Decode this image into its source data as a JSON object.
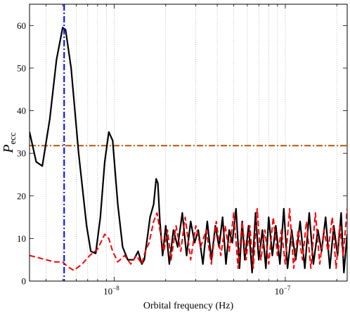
{
  "chart_data": {
    "type": "line",
    "xlabel": "Orbital frequency (Hz)",
    "ylabel": "P",
    "ylabel_subscript": "ecc",
    "xscale": "log",
    "xlim": [
      3.2e-09,
      2.3e-07
    ],
    "ylim": [
      0,
      65
    ],
    "x_ticks": [
      1e-08,
      1e-07
    ],
    "x_tick_labels": [
      {
        "base": "10",
        "exp": "−8"
      },
      {
        "base": "10",
        "exp": "−7"
      }
    ],
    "y_ticks": [
      0,
      10,
      20,
      30,
      40,
      50,
      60
    ],
    "y_tick_labels": [
      "0",
      "10",
      "20",
      "30",
      "40",
      "50",
      "60"
    ],
    "grid": "dotted vertical at log minor ticks",
    "threshold_level": 31.8,
    "marker_frequency": 5.1e-09,
    "colors": {
      "black_curve": "#000000",
      "red_curve": "#ff0000",
      "threshold": "#b35806",
      "marker": "#0000ff"
    },
    "series": [
      {
        "style": "solid black",
        "x": [
          3.2e-09,
          3.5e-09,
          3.8e-09,
          4.2e-09,
          4.6e-09,
          5e-09,
          5.2e-09,
          5.6e-09,
          6.2e-09,
          6.9e-09,
          7.3e-09,
          7.8e-09,
          8.3e-09,
          8.8e-09,
          9.3e-09,
          9.8e-09,
          1.05e-08,
          1.12e-08,
          1.2e-08,
          1.3e-08,
          1.38e-08,
          1.45e-08,
          1.5e-08,
          1.56e-08,
          1.62e-08,
          1.7e-08,
          1.76e-08,
          1.8e-08,
          1.85e-08,
          1.92e-08,
          2e-08,
          2.1e-08,
          2.22e-08,
          2.35e-08,
          2.5e-08,
          2.65e-08,
          2.8e-08,
          2.95e-08,
          3.1e-08,
          3.3e-08,
          3.5e-08,
          3.7e-08,
          3.9e-08,
          4.1e-08,
          4.3e-08,
          4.5e-08,
          4.7e-08,
          4.9e-08,
          5.15e-08,
          5.4e-08,
          5.6e-08,
          5.8e-08,
          6.1e-08,
          6.4e-08,
          6.7e-08,
          7e-08,
          7.35e-08,
          7.7e-08,
          8e-08,
          8.4e-08,
          8.8e-08,
          9.3e-08,
          9.8e-08,
          1.03e-07,
          1.09e-07,
          1.15e-07,
          1.22e-07,
          1.3e-07,
          1.38e-07,
          1.46e-07,
          1.55e-07,
          1.63e-07,
          1.72e-07,
          1.82e-07,
          1.92e-07,
          2.02e-07,
          2.12e-07,
          2.2e-07,
          2.3e-07
        ],
        "y": [
          35,
          28,
          27,
          38,
          52,
          59.5,
          59,
          50,
          30,
          13,
          7,
          6.5,
          15,
          28,
          35,
          33,
          18,
          8,
          5,
          5,
          7,
          4,
          5,
          10,
          15,
          18,
          24,
          23,
          14,
          6,
          13,
          4,
          12,
          8,
          16,
          6,
          14,
          9,
          12,
          4,
          14,
          5,
          13,
          8,
          15,
          4,
          12,
          9,
          17,
          3,
          14,
          5,
          13,
          2,
          16,
          5,
          12,
          3,
          15,
          6,
          13,
          4,
          17,
          3,
          12,
          5,
          14,
          3,
          16,
          4,
          12,
          7,
          15,
          3,
          13,
          6,
          16,
          2,
          11
        ]
      },
      {
        "style": "dashed red",
        "x": [
          3.2e-09,
          3.6e-09,
          4e-09,
          4.5e-09,
          5e-09,
          5.3e-09,
          5.8e-09,
          6.5e-09,
          7.2e-09,
          8e-09,
          8.8e-09,
          9.3e-09,
          9.8e-09,
          1.05e-08,
          1.15e-08,
          1.25e-08,
          1.35e-08,
          1.45e-08,
          1.52e-08,
          1.6e-08,
          1.7e-08,
          1.78e-08,
          1.85e-08,
          1.95e-08,
          2.05e-08,
          2.15e-08,
          2.3e-08,
          2.45e-08,
          2.6e-08,
          2.8e-08,
          3e-08,
          3.2e-08,
          3.45e-08,
          3.7e-08,
          3.95e-08,
          4.2e-08,
          4.45e-08,
          4.7e-08,
          5e-08,
          5.3e-08,
          5.6e-08,
          5.9e-08,
          6.2e-08,
          6.5e-08,
          6.85e-08,
          7.2e-08,
          7.6e-08,
          8e-08,
          8.5e-08,
          9e-08,
          9.5e-08,
          1e-07,
          1.06e-07,
          1.12e-07,
          1.19e-07,
          1.26e-07,
          1.33e-07,
          1.41e-07,
          1.5e-07,
          1.59e-07,
          1.68e-07,
          1.78e-07,
          1.88e-07,
          1.98e-07,
          2.08e-07,
          2.18e-07,
          2.3e-07
        ],
        "y": [
          6,
          5.5,
          5,
          4.5,
          4.5,
          3.5,
          2.5,
          4,
          6,
          7.5,
          11,
          10,
          7,
          4.5,
          6,
          4,
          6,
          4,
          7,
          9,
          14,
          16,
          12,
          7,
          12,
          5,
          13,
          7,
          15,
          5,
          13,
          8,
          12,
          4,
          14,
          6,
          13,
          7,
          16,
          3,
          14,
          5,
          13,
          3,
          17,
          5,
          12,
          4,
          15,
          6,
          12,
          4,
          17,
          3,
          12,
          5,
          14,
          3,
          16,
          4,
          12,
          7,
          15,
          3,
          13,
          6,
          17
        ]
      }
    ]
  }
}
